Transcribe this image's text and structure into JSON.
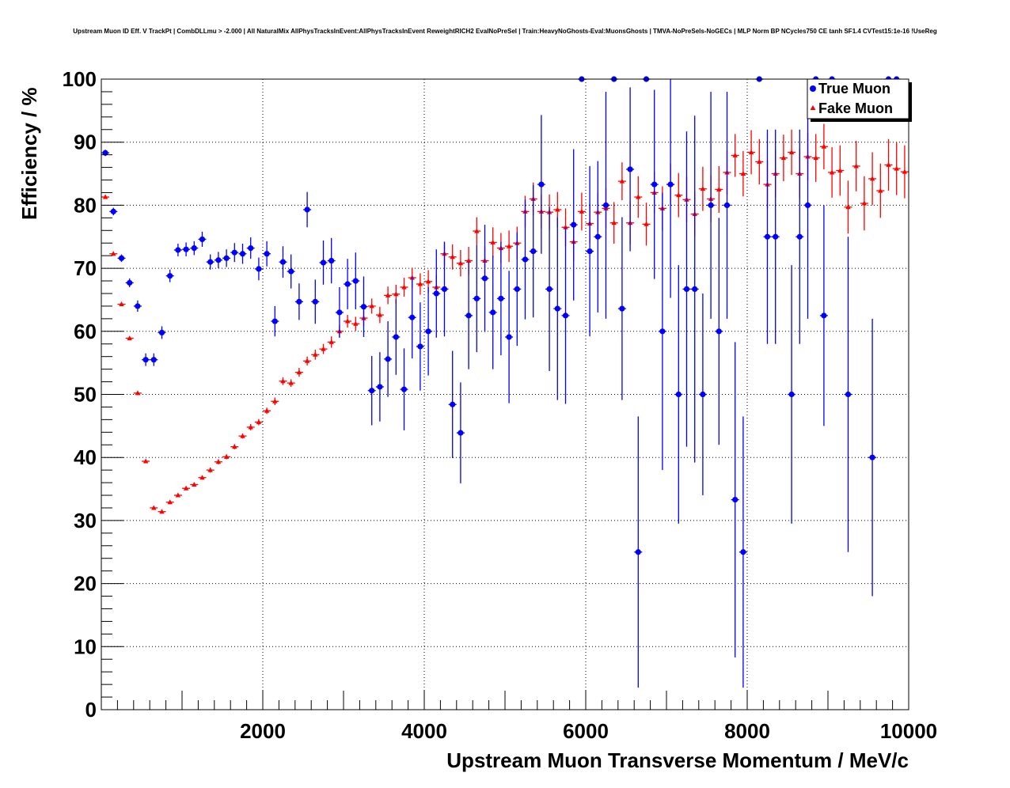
{
  "chart_data": {
    "type": "scatter",
    "title": "Upstream Muon ID Eff. V TrackPt | CombDLLmu > -2.000 | All NaturalMix AllPhysTracksInEvent:AllPhysTracksInEvent ReweightRICH2 EvalNoPreSel | Train:HeavyNoGhosts-Eval:MuonsGhosts | TMVA-NoPreSels-NoGECs | MLP Norm BP NCycles750 CE tanh SF1.4 CVTest15:1e-16 !UseReg",
    "xlabel": "Upstream Muon Transverse Momentum / MeV/c",
    "ylabel": "Efficiency / %",
    "xlim": [
      0,
      10000
    ],
    "ylim": [
      0,
      100
    ],
    "xticks": [
      2000,
      4000,
      6000,
      8000,
      10000
    ],
    "yticks": [
      0,
      10,
      20,
      30,
      40,
      50,
      60,
      70,
      80,
      90,
      100
    ],
    "grid": true,
    "legend_position": "top-right",
    "series": [
      {
        "name": "True Muon",
        "color": "#0000ff",
        "marker": "circle",
        "points": [
          [
            50,
            88.3,
            0.5
          ],
          [
            150,
            79.0,
            0.6
          ],
          [
            250,
            71.6,
            0.6
          ],
          [
            350,
            67.7,
            0.7
          ],
          [
            450,
            64.0,
            0.9
          ],
          [
            550,
            55.5,
            1.0
          ],
          [
            650,
            55.5,
            1.0
          ],
          [
            750,
            59.8,
            1.0
          ],
          [
            850,
            68.8,
            1.0
          ],
          [
            950,
            72.9,
            1.0
          ],
          [
            1050,
            73.0,
            1.1
          ],
          [
            1150,
            73.2,
            1.1
          ],
          [
            1250,
            74.6,
            1.2
          ],
          [
            1350,
            71.0,
            1.2
          ],
          [
            1450,
            71.3,
            1.3
          ],
          [
            1550,
            71.6,
            1.4
          ],
          [
            1650,
            72.5,
            1.5
          ],
          [
            1750,
            72.3,
            1.6
          ],
          [
            1850,
            73.2,
            1.7
          ],
          [
            1950,
            69.9,
            1.8
          ],
          [
            2050,
            72.3,
            2.0
          ],
          [
            2150,
            61.6,
            2.4
          ],
          [
            2250,
            71.0,
            2.5
          ],
          [
            2350,
            69.5,
            2.7
          ],
          [
            2450,
            64.7,
            2.9
          ],
          [
            2550,
            79.3,
            2.8
          ],
          [
            2650,
            64.7,
            3.5
          ],
          [
            2750,
            70.9,
            3.5
          ],
          [
            2850,
            71.2,
            3.6
          ],
          [
            2950,
            63.0,
            4.0
          ],
          [
            3050,
            67.5,
            4.0
          ],
          [
            3150,
            68.0,
            4.5
          ],
          [
            3250,
            63.9,
            4.8
          ],
          [
            3350,
            50.6,
            5.5
          ],
          [
            3450,
            51.2,
            5.5
          ],
          [
            3550,
            55.6,
            6.0
          ],
          [
            3650,
            59.1,
            6.0
          ],
          [
            3750,
            50.8,
            6.5
          ],
          [
            3850,
            62.2,
            6.5
          ],
          [
            3950,
            57.6,
            7.0
          ],
          [
            4050,
            60.0,
            7.0
          ],
          [
            4150,
            66.0,
            7.0
          ],
          [
            4250,
            66.7,
            7.5
          ],
          [
            4350,
            48.4,
            8.5
          ],
          [
            4450,
            43.9,
            8.0
          ],
          [
            4550,
            62.5,
            8.5
          ],
          [
            4650,
            65.2,
            8.5
          ],
          [
            4750,
            68.4,
            8.5
          ],
          [
            4850,
            63.0,
            9.0
          ],
          [
            4950,
            65.2,
            9.0
          ],
          [
            5050,
            59.1,
            10.5
          ],
          [
            5150,
            66.7,
            9.0
          ],
          [
            5250,
            71.4,
            9.5
          ],
          [
            5350,
            72.7,
            10.5
          ],
          [
            5450,
            83.3,
            11.0
          ],
          [
            5550,
            66.7,
            13.0
          ],
          [
            5650,
            63.6,
            14.5
          ],
          [
            5750,
            62.5,
            14.0
          ],
          [
            5850,
            76.9,
            12.0
          ],
          [
            5950,
            100.0,
            0
          ],
          [
            6050,
            72.7,
            13.5
          ],
          [
            6150,
            75.0,
            12.0
          ],
          [
            6250,
            80.0,
            18.0
          ],
          [
            6350,
            100.0,
            0
          ],
          [
            6450,
            63.6,
            14.5
          ],
          [
            6550,
            85.7,
            13.0
          ],
          [
            6650,
            25.0,
            21.5
          ],
          [
            6750,
            100.0,
            0
          ],
          [
            6850,
            83.3,
            15.0
          ],
          [
            6950,
            60.0,
            22.0
          ],
          [
            7050,
            83.3,
            18.0
          ],
          [
            7150,
            50.0,
            20.5
          ],
          [
            7250,
            66.7,
            25.0
          ],
          [
            7350,
            66.7,
            27.5
          ],
          [
            7450,
            50.0,
            16.0
          ],
          [
            7550,
            80.0,
            18.0
          ],
          [
            7650,
            60.0,
            18.0
          ],
          [
            7750,
            80.0,
            18.0
          ],
          [
            7850,
            33.3,
            25.0
          ],
          [
            7950,
            25.0,
            21.5
          ],
          [
            8150,
            100.0,
            0
          ],
          [
            8250,
            75.0,
            17.0
          ],
          [
            8350,
            75.0,
            17.0
          ],
          [
            8550,
            50.0,
            20.5
          ],
          [
            8650,
            75.0,
            17.0
          ],
          [
            8750,
            80.0,
            18.0
          ],
          [
            8850,
            100.0,
            0
          ],
          [
            8950,
            62.5,
            17.5
          ],
          [
            9050,
            100.0,
            0
          ],
          [
            9250,
            50.0,
            25.0
          ],
          [
            9550,
            40.0,
            22.0
          ],
          [
            9750,
            100.0,
            0
          ],
          [
            9850,
            100.0,
            0
          ]
        ]
      },
      {
        "name": "Fake Muon",
        "color": "#ff0000",
        "marker": "triangle",
        "points": [
          [
            50,
            81.3,
            0.3
          ],
          [
            150,
            72.3,
            0.3
          ],
          [
            250,
            64.3,
            0.3
          ],
          [
            350,
            58.9,
            0.3
          ],
          [
            450,
            50.2,
            0.3
          ],
          [
            550,
            39.4,
            0.3
          ],
          [
            650,
            32.0,
            0.3
          ],
          [
            750,
            31.4,
            0.3
          ],
          [
            850,
            32.9,
            0.3
          ],
          [
            950,
            34.0,
            0.3
          ],
          [
            1050,
            35.1,
            0.3
          ],
          [
            1150,
            35.7,
            0.3
          ],
          [
            1250,
            36.8,
            0.3
          ],
          [
            1350,
            38.0,
            0.4
          ],
          [
            1450,
            39.3,
            0.4
          ],
          [
            1550,
            40.1,
            0.4
          ],
          [
            1650,
            41.7,
            0.4
          ],
          [
            1750,
            43.4,
            0.4
          ],
          [
            1850,
            44.8,
            0.5
          ],
          [
            1950,
            45.6,
            0.5
          ],
          [
            2050,
            47.4,
            0.5
          ],
          [
            2150,
            48.9,
            0.6
          ],
          [
            2250,
            52.1,
            0.6
          ],
          [
            2350,
            51.8,
            0.6
          ],
          [
            2450,
            53.5,
            0.7
          ],
          [
            2550,
            55.3,
            0.7
          ],
          [
            2650,
            56.3,
            0.8
          ],
          [
            2750,
            57.2,
            0.8
          ],
          [
            2850,
            58.3,
            0.9
          ],
          [
            2950,
            60.0,
            1.0
          ],
          [
            3050,
            61.6,
            1.0
          ],
          [
            3150,
            61.2,
            1.1
          ],
          [
            3250,
            62.1,
            1.2
          ],
          [
            3350,
            64.0,
            1.2
          ],
          [
            3450,
            62.6,
            1.3
          ],
          [
            3550,
            65.7,
            1.4
          ],
          [
            3650,
            65.9,
            1.5
          ],
          [
            3750,
            67.0,
            1.5
          ],
          [
            3850,
            68.5,
            1.6
          ],
          [
            3950,
            67.5,
            1.7
          ],
          [
            4050,
            67.9,
            1.8
          ],
          [
            4150,
            67.0,
            1.9
          ],
          [
            4250,
            72.3,
            1.9
          ],
          [
            4350,
            71.8,
            2.0
          ],
          [
            4450,
            70.8,
            2.1
          ],
          [
            4550,
            71.2,
            2.2
          ],
          [
            4650,
            75.9,
            2.2
          ],
          [
            4750,
            71.2,
            2.3
          ],
          [
            4850,
            74.1,
            2.4
          ],
          [
            4950,
            73.2,
            2.4
          ],
          [
            5050,
            73.5,
            2.5
          ],
          [
            5150,
            74.0,
            2.6
          ],
          [
            5250,
            79.0,
            2.5
          ],
          [
            5350,
            81.0,
            2.6
          ],
          [
            5450,
            79.0,
            2.7
          ],
          [
            5550,
            78.9,
            2.8
          ],
          [
            5650,
            79.3,
            2.8
          ],
          [
            5750,
            76.5,
            3.0
          ],
          [
            5850,
            74.2,
            3.0
          ],
          [
            5950,
            79.0,
            3.0
          ],
          [
            6050,
            77.1,
            3.1
          ],
          [
            6150,
            78.9,
            3.1
          ],
          [
            6250,
            79.5,
            3.2
          ],
          [
            6350,
            77.2,
            3.3
          ],
          [
            6450,
            83.8,
            3.0
          ],
          [
            6550,
            77.2,
            3.4
          ],
          [
            6650,
            81.3,
            3.3
          ],
          [
            6750,
            77.0,
            3.4
          ],
          [
            6850,
            82.0,
            3.3
          ],
          [
            6950,
            79.5,
            3.5
          ],
          [
            7050,
            83.3,
            3.3
          ],
          [
            7150,
            81.6,
            3.5
          ],
          [
            7250,
            80.9,
            3.6
          ],
          [
            7350,
            78.6,
            3.6
          ],
          [
            7450,
            82.6,
            3.5
          ],
          [
            7550,
            81.0,
            3.7
          ],
          [
            7650,
            82.5,
            3.7
          ],
          [
            7750,
            85.2,
            3.5
          ],
          [
            7850,
            87.9,
            3.4
          ],
          [
            7950,
            85.0,
            3.6
          ],
          [
            8050,
            88.4,
            3.5
          ],
          [
            8150,
            86.9,
            3.6
          ],
          [
            8250,
            83.3,
            3.8
          ],
          [
            8350,
            85.0,
            3.8
          ],
          [
            8450,
            87.5,
            3.7
          ],
          [
            8550,
            88.4,
            3.6
          ],
          [
            8650,
            85.0,
            3.9
          ],
          [
            8750,
            87.7,
            3.8
          ],
          [
            8850,
            87.5,
            3.8
          ],
          [
            8950,
            89.3,
            3.6
          ],
          [
            9050,
            85.2,
            4.0
          ],
          [
            9150,
            85.5,
            4.0
          ],
          [
            9250,
            79.7,
            4.2
          ],
          [
            9350,
            86.2,
            4.0
          ],
          [
            9450,
            80.3,
            4.3
          ],
          [
            9550,
            84.2,
            4.2
          ],
          [
            9650,
            82.3,
            4.3
          ],
          [
            9750,
            86.4,
            4.1
          ],
          [
            9850,
            85.8,
            4.2
          ],
          [
            9950,
            85.3,
            4.2
          ]
        ]
      }
    ]
  }
}
